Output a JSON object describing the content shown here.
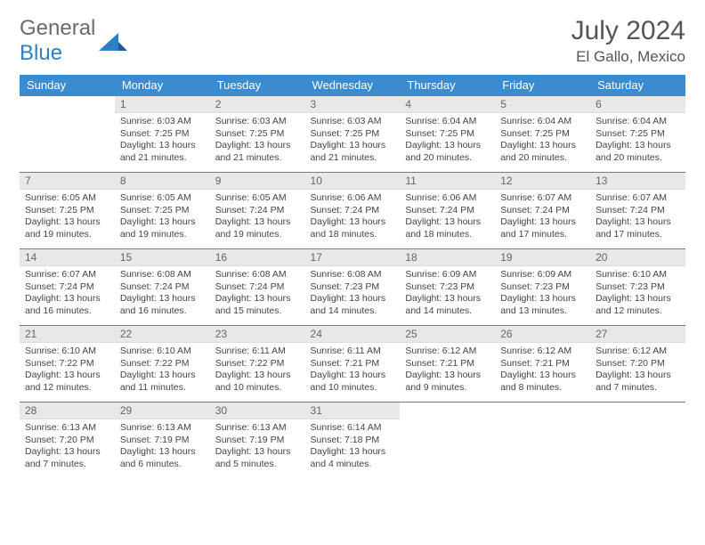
{
  "logo": {
    "text_gray": "General",
    "text_blue": "Blue"
  },
  "header": {
    "title": "July 2024",
    "location": "El Gallo, Mexico"
  },
  "colors": {
    "header_blue": "#3b8bd0",
    "daynum_bg": "#e8e8e8",
    "text_gray": "#6b6b6b",
    "logo_blue": "#2f7fc2"
  },
  "weekdays": [
    "Sunday",
    "Monday",
    "Tuesday",
    "Wednesday",
    "Thursday",
    "Friday",
    "Saturday"
  ],
  "weeks": [
    [
      null,
      {
        "d": "1",
        "sr": "6:03 AM",
        "ss": "7:25 PM",
        "dl": "13 hours and 21 minutes."
      },
      {
        "d": "2",
        "sr": "6:03 AM",
        "ss": "7:25 PM",
        "dl": "13 hours and 21 minutes."
      },
      {
        "d": "3",
        "sr": "6:03 AM",
        "ss": "7:25 PM",
        "dl": "13 hours and 21 minutes."
      },
      {
        "d": "4",
        "sr": "6:04 AM",
        "ss": "7:25 PM",
        "dl": "13 hours and 20 minutes."
      },
      {
        "d": "5",
        "sr": "6:04 AM",
        "ss": "7:25 PM",
        "dl": "13 hours and 20 minutes."
      },
      {
        "d": "6",
        "sr": "6:04 AM",
        "ss": "7:25 PM",
        "dl": "13 hours and 20 minutes."
      }
    ],
    [
      {
        "d": "7",
        "sr": "6:05 AM",
        "ss": "7:25 PM",
        "dl": "13 hours and 19 minutes."
      },
      {
        "d": "8",
        "sr": "6:05 AM",
        "ss": "7:25 PM",
        "dl": "13 hours and 19 minutes."
      },
      {
        "d": "9",
        "sr": "6:05 AM",
        "ss": "7:24 PM",
        "dl": "13 hours and 19 minutes."
      },
      {
        "d": "10",
        "sr": "6:06 AM",
        "ss": "7:24 PM",
        "dl": "13 hours and 18 minutes."
      },
      {
        "d": "11",
        "sr": "6:06 AM",
        "ss": "7:24 PM",
        "dl": "13 hours and 18 minutes."
      },
      {
        "d": "12",
        "sr": "6:07 AM",
        "ss": "7:24 PM",
        "dl": "13 hours and 17 minutes."
      },
      {
        "d": "13",
        "sr": "6:07 AM",
        "ss": "7:24 PM",
        "dl": "13 hours and 17 minutes."
      }
    ],
    [
      {
        "d": "14",
        "sr": "6:07 AM",
        "ss": "7:24 PM",
        "dl": "13 hours and 16 minutes."
      },
      {
        "d": "15",
        "sr": "6:08 AM",
        "ss": "7:24 PM",
        "dl": "13 hours and 16 minutes."
      },
      {
        "d": "16",
        "sr": "6:08 AM",
        "ss": "7:24 PM",
        "dl": "13 hours and 15 minutes."
      },
      {
        "d": "17",
        "sr": "6:08 AM",
        "ss": "7:23 PM",
        "dl": "13 hours and 14 minutes."
      },
      {
        "d": "18",
        "sr": "6:09 AM",
        "ss": "7:23 PM",
        "dl": "13 hours and 14 minutes."
      },
      {
        "d": "19",
        "sr": "6:09 AM",
        "ss": "7:23 PM",
        "dl": "13 hours and 13 minutes."
      },
      {
        "d": "20",
        "sr": "6:10 AM",
        "ss": "7:23 PM",
        "dl": "13 hours and 12 minutes."
      }
    ],
    [
      {
        "d": "21",
        "sr": "6:10 AM",
        "ss": "7:22 PM",
        "dl": "13 hours and 12 minutes."
      },
      {
        "d": "22",
        "sr": "6:10 AM",
        "ss": "7:22 PM",
        "dl": "13 hours and 11 minutes."
      },
      {
        "d": "23",
        "sr": "6:11 AM",
        "ss": "7:22 PM",
        "dl": "13 hours and 10 minutes."
      },
      {
        "d": "24",
        "sr": "6:11 AM",
        "ss": "7:21 PM",
        "dl": "13 hours and 10 minutes."
      },
      {
        "d": "25",
        "sr": "6:12 AM",
        "ss": "7:21 PM",
        "dl": "13 hours and 9 minutes."
      },
      {
        "d": "26",
        "sr": "6:12 AM",
        "ss": "7:21 PM",
        "dl": "13 hours and 8 minutes."
      },
      {
        "d": "27",
        "sr": "6:12 AM",
        "ss": "7:20 PM",
        "dl": "13 hours and 7 minutes."
      }
    ],
    [
      {
        "d": "28",
        "sr": "6:13 AM",
        "ss": "7:20 PM",
        "dl": "13 hours and 7 minutes."
      },
      {
        "d": "29",
        "sr": "6:13 AM",
        "ss": "7:19 PM",
        "dl": "13 hours and 6 minutes."
      },
      {
        "d": "30",
        "sr": "6:13 AM",
        "ss": "7:19 PM",
        "dl": "13 hours and 5 minutes."
      },
      {
        "d": "31",
        "sr": "6:14 AM",
        "ss": "7:18 PM",
        "dl": "13 hours and 4 minutes."
      },
      null,
      null,
      null
    ]
  ],
  "labels": {
    "sunrise": "Sunrise: ",
    "sunset": "Sunset: ",
    "daylight": "Daylight: "
  }
}
